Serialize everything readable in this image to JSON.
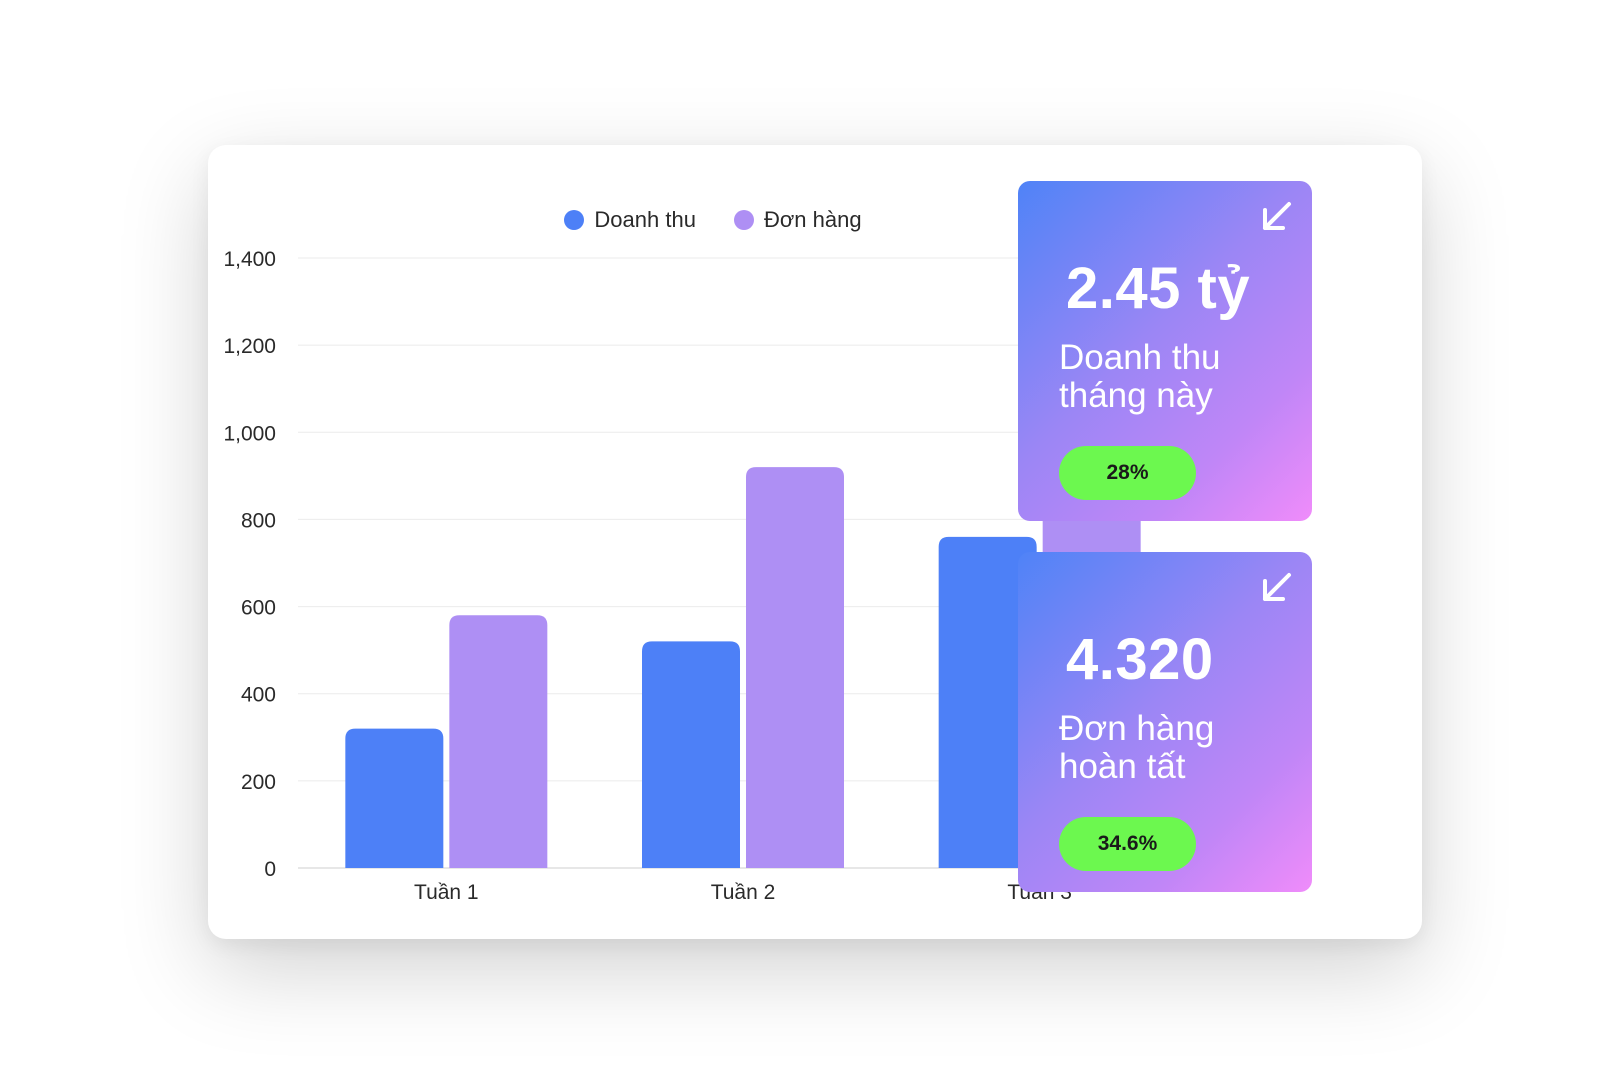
{
  "chart_data": {
    "type": "bar",
    "categories": [
      "Tuần 1",
      "Tuần 2",
      "Tuần 3"
    ],
    "series": [
      {
        "name": "Doanh thu",
        "values": [
          320,
          520,
          760
        ],
        "color": "#4d80f7"
      },
      {
        "name": "Đơn hàng",
        "values": [
          580,
          920,
          1250
        ],
        "color": "#ae8ff4"
      }
    ],
    "ylim": [
      0,
      1400
    ],
    "yticks": [
      "0",
      "200",
      "400",
      "600",
      "800",
      "1,000",
      "1,200",
      "1,400"
    ],
    "grid": true,
    "legend_position": "top-center"
  },
  "stats": [
    {
      "value": "2.45 tỷ",
      "label_line1": "Doanh thu",
      "label_line2": "tháng này",
      "badge": "28%",
      "icon": "arrow-down-left-icon"
    },
    {
      "value": "4.320",
      "label_line1": "Đơn hàng",
      "label_line2": "hoàn tất",
      "badge": "34.6%",
      "icon": "arrow-down-left-icon"
    }
  ],
  "colors": {
    "badge": "#6cf84f",
    "gradient_start": "#4f83f7",
    "gradient_end": "#f08cfa"
  }
}
